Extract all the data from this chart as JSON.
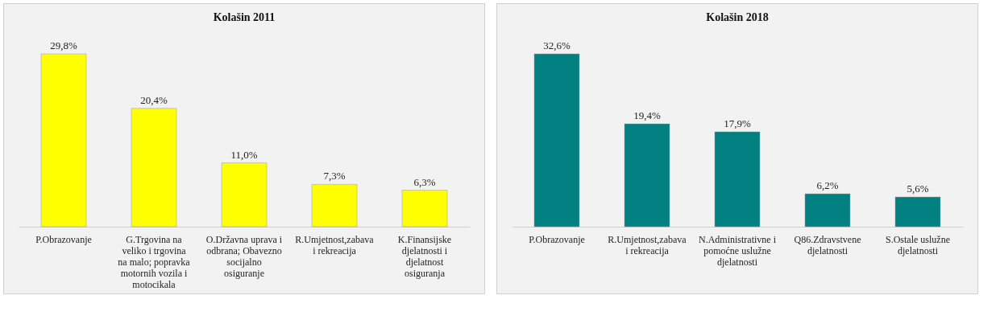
{
  "chart_data": [
    {
      "type": "bar",
      "title": "Kolašin 2011",
      "categories": [
        "P.Obrazovanje",
        "G.Trgovina na veliko i trgovina na malo; popravka motornih vozila i motocikala",
        "O.Državna uprava i odbrana; Obavezno socijalno osiguranje",
        "R.Umjetnost,zabava i rekreacija",
        "K.Finansijske djelatnosti i djelatnost osiguranja"
      ],
      "series": [
        {
          "color": "#ffff00",
          "values": [
            29.8,
            20.4,
            11.0,
            7.3,
            6.3
          ],
          "value_labels": [
            "29,8%",
            "20,4%",
            "11,0%",
            "7,3%",
            "6,3%"
          ]
        }
      ]
    },
    {
      "type": "bar",
      "title": "Kolašin 2018",
      "categories": [
        "P.Obrazovanje",
        "R.Umjetnost,zabava i rekreacija",
        "N.Administrativne i pomoćne uslužne djelatnosti",
        "Q86.Zdravstvene djelatnosti",
        "S.Ostale uslužne djelatnosti"
      ],
      "series": [
        {
          "color": "#008080",
          "values": [
            32.6,
            19.4,
            17.9,
            6.2,
            5.6
          ],
          "value_labels": [
            "32,6%",
            "19,4%",
            "17,9%",
            "6,2%",
            "5,6%"
          ]
        }
      ]
    }
  ]
}
